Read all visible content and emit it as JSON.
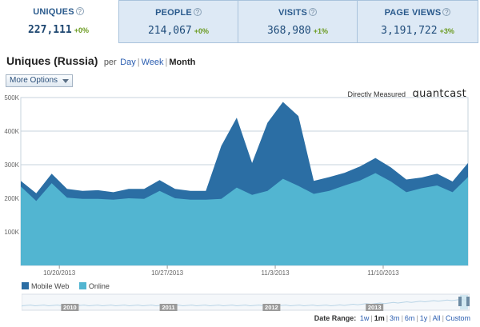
{
  "tabs": [
    {
      "label": "UNIQUES",
      "value": "227,111",
      "change": "+0%",
      "active": true
    },
    {
      "label": "PEOPLE",
      "value": "214,067",
      "change": "+0%",
      "active": false
    },
    {
      "label": "VISITS",
      "value": "368,980",
      "change": "+1%",
      "active": false
    },
    {
      "label": "PAGE VIEWS",
      "value": "3,191,722",
      "change": "+3%",
      "active": false
    }
  ],
  "help_glyph": "?",
  "heading": {
    "title": "Uniques (Russia)",
    "per": "per",
    "periods": [
      "Day",
      "Week",
      "Month"
    ],
    "current_period": "Month",
    "separator": "|"
  },
  "options_button": "More Options",
  "measured": {
    "text": "Directly Measured",
    "brand": "quantcast"
  },
  "colors": {
    "mobile_web": "#2b6ea4",
    "online": "#52b5d1",
    "grid": "#c7d3de",
    "tick_text": "#666666",
    "navigator_line": "#b8d4e6",
    "navigator_label_bg": "#9a9a9a"
  },
  "chart_data": {
    "type": "area",
    "stacked": false,
    "y_ticks": [
      "100K",
      "200K",
      "300K",
      "400K",
      "500K"
    ],
    "ylim": [
      0,
      500000
    ],
    "x_tick_labels": [
      "10/20/2013",
      "10/27/2013",
      "11/3/2013",
      "11/10/2013"
    ],
    "x_tick_positions": [
      2.5,
      9.5,
      16.5,
      23.5
    ],
    "grid": true,
    "series": [
      {
        "name": "Mobile Web",
        "values": [
          252000,
          215000,
          273000,
          228000,
          222000,
          224000,
          218000,
          228000,
          228000,
          254000,
          228000,
          222000,
          222000,
          356000,
          440000,
          305000,
          425000,
          487000,
          445000,
          252000,
          263000,
          276000,
          295000,
          320000,
          292000,
          256000,
          262000,
          273000,
          250000,
          305000
        ]
      },
      {
        "name": "Online",
        "values": [
          235000,
          192000,
          245000,
          202000,
          198000,
          198000,
          196000,
          200000,
          198000,
          222000,
          200000,
          196000,
          196000,
          198000,
          232000,
          210000,
          222000,
          258000,
          237000,
          213000,
          222000,
          238000,
          253000,
          275000,
          250000,
          218000,
          230000,
          238000,
          218000,
          263000
        ]
      }
    ]
  },
  "legend": [
    {
      "name": "Mobile Web",
      "color": "#2b6ea4"
    },
    {
      "name": "Online",
      "color": "#52b5d1"
    }
  ],
  "navigator": {
    "year_labels": [
      "2010",
      "2011",
      "2012",
      "2013"
    ],
    "year_positions": [
      0.09,
      0.31,
      0.54,
      0.77
    ]
  },
  "date_range": {
    "label": "Date Range:",
    "options": [
      "1w",
      "1m",
      "3m",
      "6m",
      "1y",
      "All",
      "Custom"
    ],
    "current": "1m",
    "separator": "|"
  }
}
